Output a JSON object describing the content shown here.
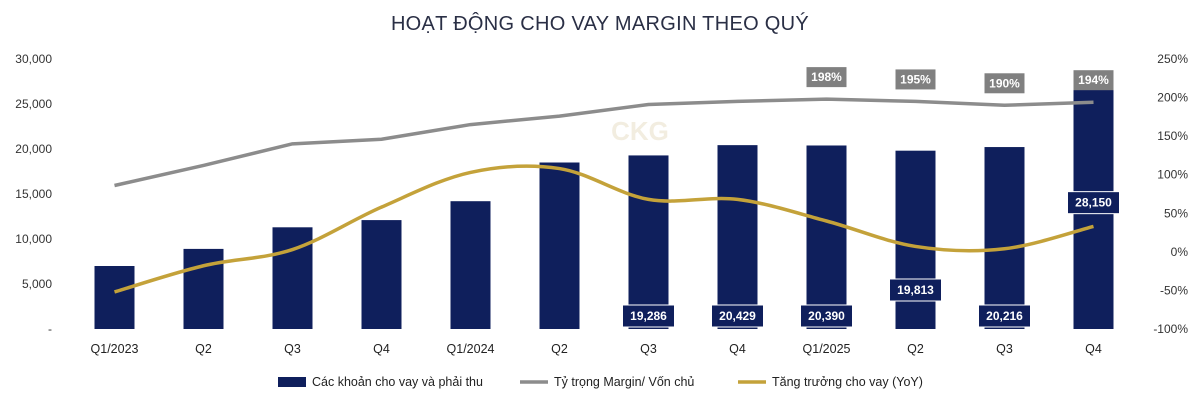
{
  "chart_data": {
    "type": "bar",
    "title": "HOẠT ĐỘNG CHO VAY MARGIN THEO QUÝ",
    "categories": [
      "Q1/2023",
      "Q2",
      "Q3",
      "Q4",
      "Q1/2024",
      "Q2",
      "Q3",
      "Q4",
      "Q1/2025",
      "Q2",
      "Q3",
      "Q4"
    ],
    "left_axis": {
      "ylim": [
        0,
        30000
      ],
      "tick_values": [
        0,
        5000,
        10000,
        15000,
        20000,
        25000,
        30000
      ],
      "tick_labels": [
        "-",
        "5,000",
        "10,000",
        "15,000",
        "20,000",
        "25,000",
        "30,000"
      ]
    },
    "right_axis": {
      "ylim": [
        -100,
        250
      ],
      "tick_values": [
        -100,
        -50,
        0,
        50,
        100,
        150,
        200,
        250
      ],
      "tick_labels": [
        "-100%",
        "-50%",
        "0%",
        "50%",
        "100%",
        "150%",
        "200%",
        "250%"
      ]
    },
    "series": [
      {
        "name": "Các khoản cho vay và phải thu",
        "type": "bar",
        "axis": "left",
        "color": "#0f1f5c",
        "values": [
          7000,
          8900,
          11300,
          12100,
          14200,
          18500,
          19286,
          20429,
          20390,
          19813,
          20216,
          28150
        ],
        "data_labels": [
          "",
          "",
          "",
          "",
          "",
          "",
          "19,286",
          "20,429",
          "20,390",
          "19,813",
          "20,216",
          "28,150"
        ]
      },
      {
        "name": "Tỷ trọng Margin/ Vốn chủ",
        "type": "line",
        "axis": "right",
        "color": "#8c8c8c",
        "values": [
          86,
          112,
          140,
          146,
          165,
          176,
          191,
          195,
          198,
          195,
          190,
          194
        ],
        "data_labels": [
          "",
          "",
          "",
          "",
          "",
          "",
          "",
          "",
          "198%",
          "195%",
          "190%",
          "194%"
        ]
      },
      {
        "name": "Tăng trưởng cho vay (YoY)",
        "type": "line",
        "axis": "right",
        "color": "#c4a23a",
        "values": [
          -52,
          -18,
          3,
          58,
          103,
          108,
          68,
          68,
          40,
          7,
          4,
          33
        ],
        "data_labels": []
      }
    ],
    "watermark": "CKG",
    "legend_position": "bottom",
    "grid": false
  }
}
